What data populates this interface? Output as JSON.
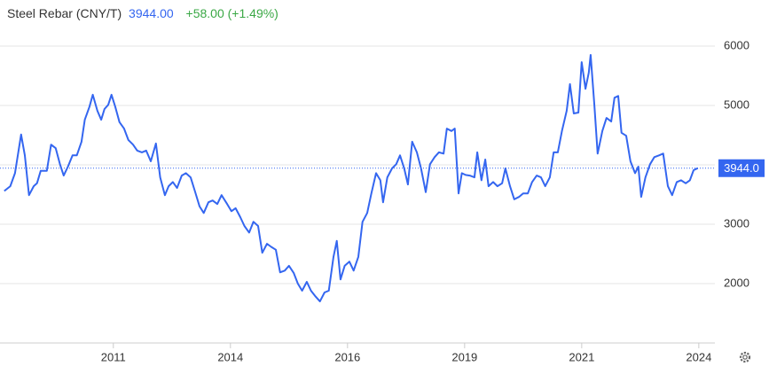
{
  "chart_data": {
    "type": "line",
    "header": {
      "name": "Steel Rebar (CNY/T)",
      "price": "3944.00",
      "change": "+58.00 (+1.49%)"
    },
    "colors": {
      "name": "#333333",
      "price": "#3466f0",
      "change": "#3aa845"
    },
    "color": "#3466f0",
    "x": [
      2008.67,
      2008.8,
      2008.9,
      2009.03,
      2009.11,
      2009.2,
      2009.3,
      2009.37,
      2009.45,
      2009.58,
      2009.67,
      2009.77,
      2009.86,
      2009.94,
      2010.03,
      2010.13,
      2010.22,
      2010.32,
      2010.39,
      2010.49,
      2010.56,
      2010.66,
      2010.74,
      2010.81,
      2010.89,
      2010.96,
      2011.04,
      2011.13,
      2011.23,
      2011.32,
      2011.42,
      2011.51,
      2011.61,
      2011.7,
      2011.8,
      2011.91,
      2012.0,
      2012.1,
      2012.18,
      2012.27,
      2012.36,
      2012.46,
      2012.55,
      2012.65,
      2012.74,
      2012.84,
      2012.93,
      2013.03,
      2013.12,
      2013.22,
      2013.31,
      2013.43,
      2013.52,
      2013.61,
      2013.71,
      2013.8,
      2013.9,
      2013.99,
      2014.09,
      2014.18,
      2014.28,
      2014.37,
      2014.47,
      2014.56,
      2014.66,
      2014.75,
      2014.85,
      2014.94,
      2015.03,
      2015.13,
      2015.22,
      2015.32,
      2015.41,
      2015.51,
      2015.6,
      2015.7,
      2015.77,
      2015.85,
      2015.94,
      2016.04,
      2016.13,
      2016.23,
      2016.32,
      2016.42,
      2016.51,
      2016.61,
      2016.7,
      2016.76,
      2016.85,
      2016.95,
      2017.04,
      2017.12,
      2017.21,
      2017.29,
      2017.38,
      2017.48,
      2017.57,
      2017.67,
      2017.76,
      2017.86,
      2017.95,
      2018.05,
      2018.12,
      2018.22,
      2018.29,
      2018.37,
      2018.44,
      2018.52,
      2018.61,
      2018.71,
      2018.77,
      2018.86,
      2018.94,
      2019.01,
      2019.11,
      2019.2,
      2019.3,
      2019.37,
      2019.47,
      2019.56,
      2019.66,
      2019.75,
      2019.85,
      2019.94,
      2020.04,
      2020.13,
      2020.22,
      2020.32,
      2020.4,
      2020.49,
      2020.58,
      2020.68,
      2020.75,
      2020.83,
      2020.93,
      2021.0,
      2021.08,
      2021.15,
      2021.19,
      2021.27,
      2021.34,
      2021.44,
      2021.53,
      2021.63,
      2021.7,
      2021.78,
      2021.85,
      2021.95,
      2022.04,
      2022.14,
      2022.21,
      2022.27,
      2022.36,
      2022.46,
      2022.55,
      2022.65,
      2022.74,
      2022.84,
      2022.93,
      2023.03,
      2023.12,
      2023.22,
      2023.31,
      2023.39,
      2023.48
    ],
    "values": [
      3560,
      3640,
      3860,
      4510,
      4160,
      3490,
      3640,
      3690,
      3900,
      3900,
      4340,
      4280,
      4010,
      3820,
      3970,
      4160,
      4160,
      4390,
      4760,
      4980,
      5180,
      4910,
      4760,
      4940,
      5010,
      5180,
      4980,
      4720,
      4610,
      4420,
      4340,
      4240,
      4210,
      4240,
      4060,
      4360,
      3790,
      3490,
      3640,
      3710,
      3610,
      3820,
      3860,
      3790,
      3560,
      3300,
      3190,
      3370,
      3400,
      3340,
      3490,
      3340,
      3220,
      3270,
      3120,
      2970,
      2860,
      3040,
      2970,
      2520,
      2670,
      2620,
      2570,
      2190,
      2220,
      2300,
      2180,
      2000,
      1880,
      2030,
      1880,
      1780,
      1700,
      1850,
      1880,
      2450,
      2720,
      2070,
      2300,
      2370,
      2220,
      2450,
      3040,
      3190,
      3520,
      3860,
      3740,
      3370,
      3790,
      3940,
      4010,
      4160,
      3940,
      3670,
      4390,
      4210,
      3940,
      3540,
      4010,
      4130,
      4210,
      4190,
      4610,
      4570,
      4610,
      3520,
      3860,
      3830,
      3820,
      3790,
      4210,
      3740,
      4090,
      3640,
      3710,
      3640,
      3690,
      3940,
      3640,
      3420,
      3460,
      3520,
      3520,
      3710,
      3820,
      3790,
      3640,
      3790,
      4210,
      4210,
      4580,
      4910,
      5360,
      4865,
      4880,
      5730,
      5280,
      5550,
      5850,
      5010,
      4190,
      4570,
      4790,
      4730,
      5130,
      5160,
      4540,
      4490,
      4060,
      3860,
      3970,
      3460,
      3790,
      4010,
      4130,
      4160,
      4190,
      3640,
      3490,
      3710,
      3740,
      3690,
      3740,
      3910,
      3944
    ],
    "xlim": [
      2008.58,
      2023.73
    ],
    "xticks": [
      {
        "value": 2011,
        "label": "2011"
      },
      {
        "value": 2013.5,
        "label": "2014"
      },
      {
        "value": 2016,
        "label": "2016"
      },
      {
        "value": 2018.5,
        "label": "2019"
      },
      {
        "value": 2021,
        "label": "2021"
      },
      {
        "value": 2023.5,
        "label": "2024"
      }
    ],
    "ylim": [
      1000,
      6776
    ],
    "yticks": [
      2000,
      3000,
      4000,
      5000,
      6000
    ],
    "grid": true,
    "reference_line": {
      "value": 3944,
      "label": "3944.0"
    }
  }
}
